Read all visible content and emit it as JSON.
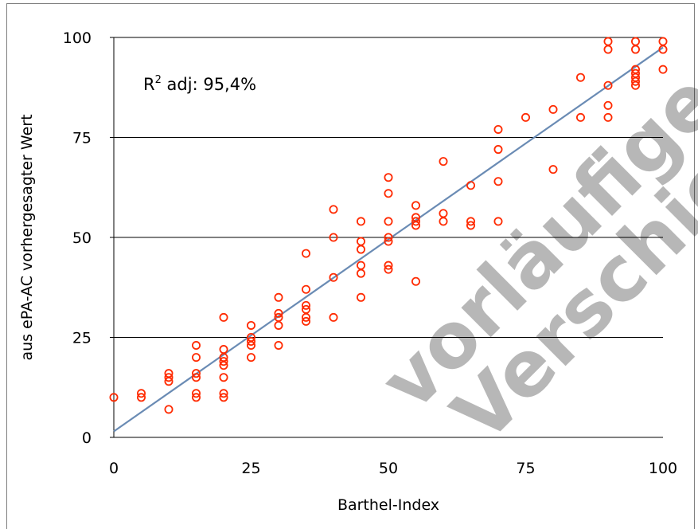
{
  "chart_data": {
    "type": "scatter",
    "title": "",
    "xlabel": "Barthel-Index",
    "ylabel": "aus ePA-AC vorhergesagter Wert",
    "xlim": [
      0,
      100
    ],
    "ylim": [
      0,
      100
    ],
    "xticks": [
      "0",
      "25",
      "50",
      "75",
      "100"
    ],
    "yticks": [
      "0",
      "25",
      "50",
      "75",
      "100"
    ],
    "grid": "horizontal",
    "annotation": {
      "main": "R",
      "sup": "2",
      "rest": " adj: 95,4%"
    },
    "watermark": [
      "vorläufige Da",
      "Verschie"
    ],
    "series": [
      {
        "marker": "circle",
        "color": "#ff2a00",
        "points": [
          [
            0,
            10
          ],
          [
            5,
            10
          ],
          [
            5,
            11
          ],
          [
            10,
            7
          ],
          [
            10,
            14
          ],
          [
            10,
            15
          ],
          [
            10,
            16
          ],
          [
            15,
            10
          ],
          [
            15,
            11
          ],
          [
            15,
            15
          ],
          [
            15,
            16
          ],
          [
            15,
            20
          ],
          [
            15,
            23
          ],
          [
            20,
            10
          ],
          [
            20,
            11
          ],
          [
            20,
            15
          ],
          [
            20,
            18
          ],
          [
            20,
            19
          ],
          [
            20,
            20
          ],
          [
            20,
            22
          ],
          [
            20,
            30
          ],
          [
            25,
            20
          ],
          [
            25,
            23
          ],
          [
            25,
            24
          ],
          [
            25,
            25
          ],
          [
            25,
            28
          ],
          [
            30,
            23
          ],
          [
            30,
            28
          ],
          [
            30,
            30
          ],
          [
            30,
            31
          ],
          [
            30,
            35
          ],
          [
            35,
            29
          ],
          [
            35,
            30
          ],
          [
            35,
            32
          ],
          [
            35,
            33
          ],
          [
            35,
            37
          ],
          [
            35,
            46
          ],
          [
            40,
            30
          ],
          [
            40,
            40
          ],
          [
            40,
            50
          ],
          [
            40,
            57
          ],
          [
            45,
            35
          ],
          [
            45,
            41
          ],
          [
            45,
            43
          ],
          [
            45,
            47
          ],
          [
            45,
            49
          ],
          [
            45,
            54
          ],
          [
            50,
            42
          ],
          [
            50,
            43
          ],
          [
            50,
            49
          ],
          [
            50,
            50
          ],
          [
            50,
            54
          ],
          [
            50,
            61
          ],
          [
            50,
            65
          ],
          [
            55,
            39
          ],
          [
            55,
            53
          ],
          [
            55,
            54
          ],
          [
            55,
            55
          ],
          [
            55,
            58
          ],
          [
            60,
            54
          ],
          [
            60,
            56
          ],
          [
            60,
            69
          ],
          [
            65,
            53
          ],
          [
            65,
            54
          ],
          [
            65,
            63
          ],
          [
            70,
            54
          ],
          [
            70,
            64
          ],
          [
            70,
            72
          ],
          [
            70,
            77
          ],
          [
            75,
            80
          ],
          [
            80,
            67
          ],
          [
            80,
            82
          ],
          [
            85,
            80
          ],
          [
            85,
            90
          ],
          [
            90,
            80
          ],
          [
            90,
            83
          ],
          [
            90,
            88
          ],
          [
            90,
            97
          ],
          [
            90,
            99
          ],
          [
            95,
            88
          ],
          [
            95,
            89
          ],
          [
            95,
            90
          ],
          [
            95,
            91
          ],
          [
            95,
            92
          ],
          [
            95,
            97
          ],
          [
            95,
            99
          ],
          [
            100,
            92
          ],
          [
            100,
            97
          ],
          [
            100,
            99
          ]
        ]
      }
    ],
    "regression_line": {
      "color": "#6a8bb4",
      "from": [
        0,
        1.5
      ],
      "to": [
        100,
        97.5
      ]
    }
  }
}
